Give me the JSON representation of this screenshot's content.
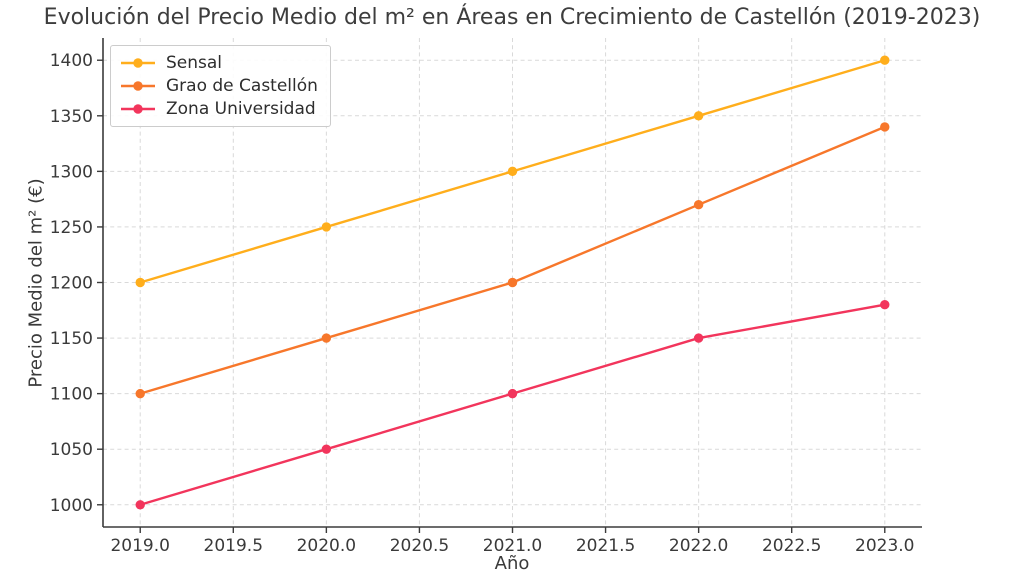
{
  "chart_data": {
    "type": "line",
    "title": "Evolución del Precio Medio del m² en Áreas en Crecimiento de Castellón (2019-2023)",
    "xlabel": "Año",
    "ylabel": "Precio Medio del m² (€)",
    "x": [
      2019,
      2020,
      2021,
      2022,
      2023
    ],
    "series": [
      {
        "name": "Sensal",
        "color": "#FFAE1C",
        "values": [
          1200,
          1250,
          1300,
          1350,
          1400
        ]
      },
      {
        "name": "Grao de Castellón",
        "color": "#F7772B",
        "values": [
          1100,
          1150,
          1200,
          1270,
          1340
        ]
      },
      {
        "name": "Zona Universidad",
        "color": "#F2355C",
        "values": [
          1000,
          1050,
          1100,
          1150,
          1180
        ]
      }
    ],
    "xticks": [
      2019.0,
      2019.5,
      2020.0,
      2020.5,
      2021.0,
      2021.5,
      2022.0,
      2022.5,
      2023.0
    ],
    "xtick_labels": [
      "2019.0",
      "2019.5",
      "2020.0",
      "2020.5",
      "2021.0",
      "2021.5",
      "2022.0",
      "2022.5",
      "2023.0"
    ],
    "yticks": [
      1000,
      1050,
      1100,
      1150,
      1200,
      1250,
      1300,
      1350,
      1400
    ],
    "ytick_labels": [
      "1000",
      "1050",
      "1100",
      "1150",
      "1200",
      "1250",
      "1300",
      "1350",
      "1400"
    ],
    "xlim": [
      2018.8,
      2023.2
    ],
    "ylim": [
      980,
      1420
    ],
    "grid": true,
    "grid_style": "dashed",
    "grid_color": "#d9d9d9",
    "spine_color": "#3b3b3b",
    "tick_label_color": "#3a3a3a",
    "legend_position": "upper left",
    "marker": "circle",
    "marker_radius": 4.7,
    "line_width": 2.4
  }
}
